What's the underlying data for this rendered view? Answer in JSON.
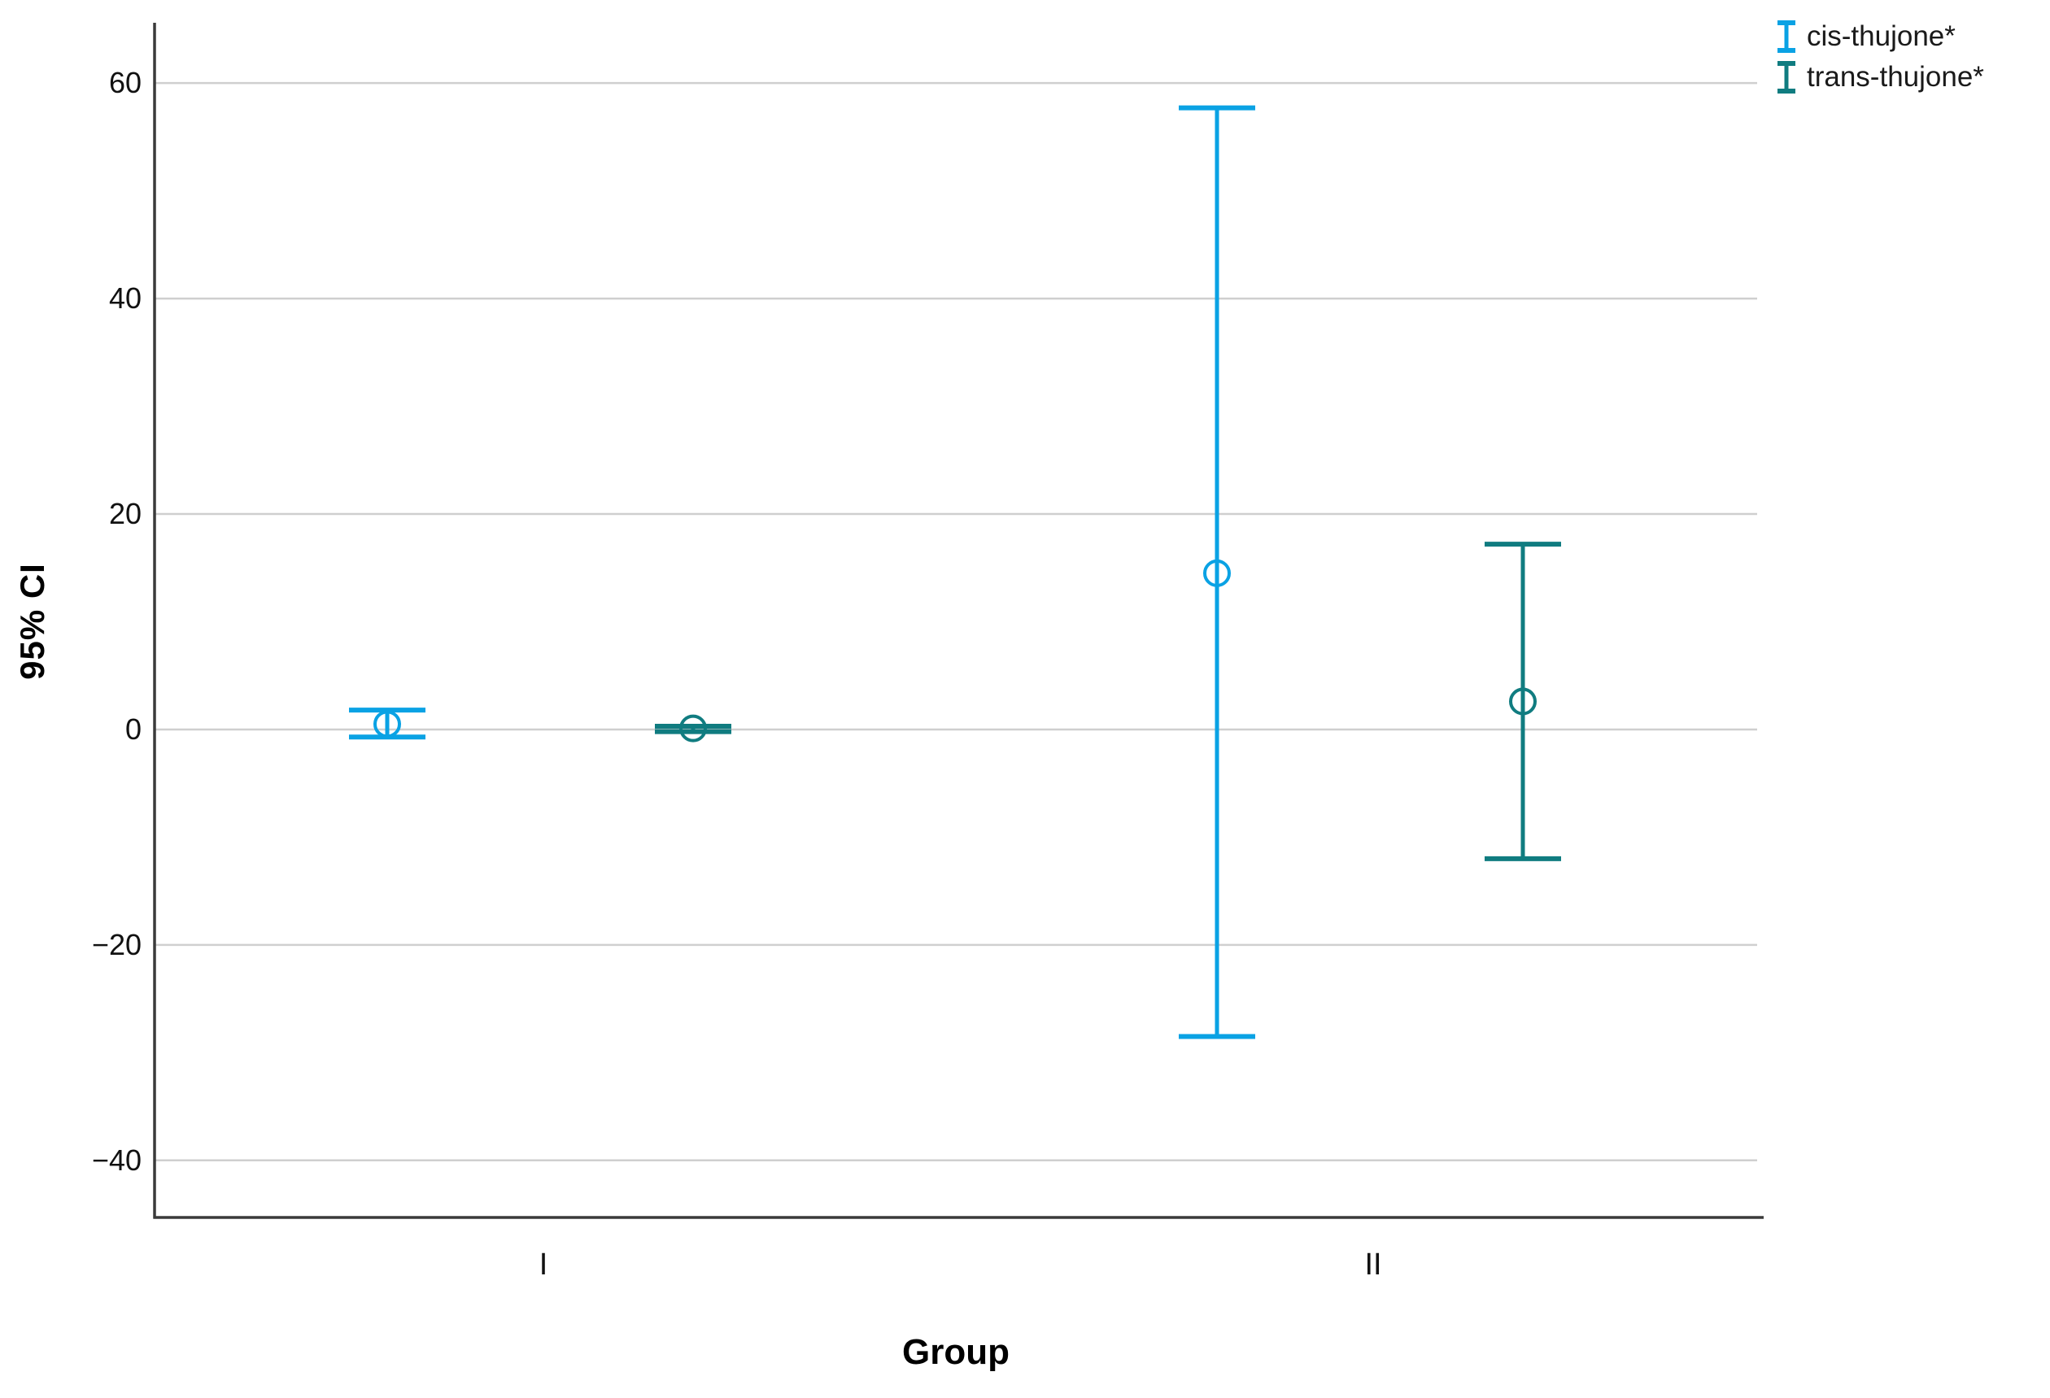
{
  "chart_data": {
    "type": "errorbar",
    "title": "",
    "xlabel": "Group",
    "ylabel": "95% CI",
    "categories": [
      "I",
      "II"
    ],
    "y_ticks": [
      60,
      40,
      20,
      0,
      -20,
      -40
    ],
    "y_tick_labels": [
      "60",
      "40",
      "20",
      "0",
      "−20",
      "−40"
    ],
    "ylim": [
      -45.3,
      65.6
    ],
    "grid": "horizontal-only",
    "gridline_color": "#cfcfcf",
    "axis_color": "#3a3a3a",
    "legend_position": "top-right",
    "marker": "open-circle",
    "series": [
      {
        "name": "cis-thujone*",
        "color": "#0aa2e4",
        "points": [
          {
            "group": "I",
            "mean": 0.5,
            "ci_low": -0.7,
            "ci_high": 1.8
          },
          {
            "group": "II",
            "mean": 14.5,
            "ci_low": -28.5,
            "ci_high": 57.7
          }
        ]
      },
      {
        "name": "trans-thujone*",
        "color": "#107c80",
        "points": [
          {
            "group": "I",
            "mean": 0.1,
            "ci_low": -0.2,
            "ci_high": 0.3
          },
          {
            "group": "II",
            "mean": 2.6,
            "ci_low": -12.0,
            "ci_high": 17.2
          }
        ]
      }
    ]
  }
}
